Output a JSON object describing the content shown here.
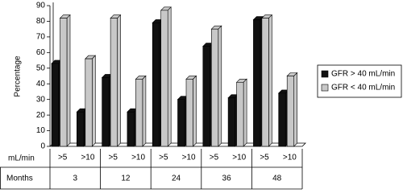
{
  "chart_data": {
    "type": "bar3d",
    "y_label": "Percentage",
    "x_label": "mL/min",
    "categories": [
      ">5",
      ">10",
      ">5",
      ">10",
      ">5",
      ">10",
      ">5",
      ">10",
      ">5",
      ">10"
    ],
    "group_label": "Months",
    "groups": [
      "3",
      "12",
      "24",
      "36",
      "48"
    ],
    "series": [
      {
        "name": "GFR > 40 mL/min",
        "color": "#111111",
        "values": [
          53,
          22,
          44,
          22,
          79,
          30,
          64,
          31,
          81,
          34
        ]
      },
      {
        "name": "GFR < 40 mL/min",
        "color": "#c8c8c8",
        "values": [
          82,
          56,
          82,
          43,
          87,
          43,
          75,
          41,
          82,
          45
        ]
      }
    ],
    "ylim": [
      0,
      90
    ],
    "yticks": [
      0,
      10,
      20,
      30,
      40,
      50,
      60,
      70,
      80,
      90
    ],
    "legend": "right"
  }
}
